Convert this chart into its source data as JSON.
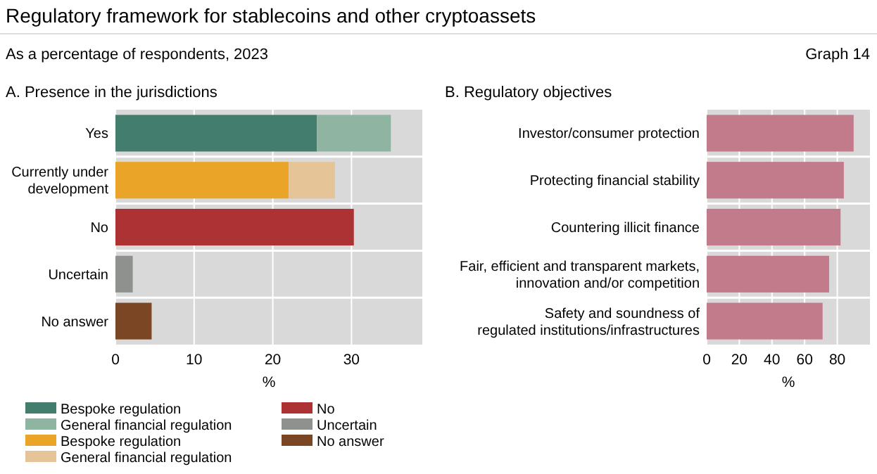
{
  "chart_data": [
    {
      "type": "bar",
      "title": "Regulatory framework for stablecoins and other cryptoassets",
      "subtitle": "As a percentage of respondents, 2023",
      "annotations": [
        "Graph 14",
        "A. Presence in the jurisdictions"
      ],
      "orientation": "horizontal",
      "stacked": true,
      "legend": "bottom",
      "grid": true,
      "xlabel": "%",
      "xlim": [
        0,
        39
      ],
      "xticks": [
        0,
        10,
        20,
        30
      ],
      "categories": [
        "Yes",
        "Currently under\ndevelopment",
        "No",
        "Uncertain",
        "No answer"
      ],
      "series": [
        {
          "name": "Bespoke regulation",
          "color": "#437d6e",
          "values": [
            25.6,
            null,
            null,
            null,
            null
          ]
        },
        {
          "name": "General financial regulation",
          "color": "#8fb5a2",
          "values": [
            9.4,
            null,
            null,
            null,
            null
          ]
        },
        {
          "name": "Bespoke regulation",
          "color": "#eaa428",
          "values": [
            null,
            22.0,
            null,
            null,
            null
          ]
        },
        {
          "name": "General financial regulation",
          "color": "#e5c597",
          "values": [
            null,
            5.9,
            null,
            null,
            null
          ]
        },
        {
          "name": "No",
          "color": "#ad3234",
          "values": [
            null,
            null,
            30.3,
            null,
            null
          ]
        },
        {
          "name": "Uncertain",
          "color": "#8f918e",
          "values": [
            null,
            null,
            null,
            2.2,
            null
          ]
        },
        {
          "name": "No answer",
          "color": "#7a4624",
          "values": [
            null,
            null,
            null,
            null,
            4.6
          ]
        }
      ]
    },
    {
      "type": "bar",
      "title": "B. Regulatory objectives",
      "orientation": "horizontal",
      "grid": true,
      "xlabel": "%",
      "xlim": [
        0,
        100
      ],
      "xticks": [
        0,
        20,
        40,
        60,
        80
      ],
      "categories": [
        "Investor/consumer protection",
        "Protecting financial stability",
        "Countering illicit finance",
        "Fair, efficient and transparent markets,\ninnovation and/or competition",
        "Safety and soundness of\nregulated institutions/infrastructures"
      ],
      "series": [
        {
          "color": "#c27b8b",
          "values": [
            90,
            84,
            82,
            75,
            71
          ]
        }
      ]
    }
  ]
}
